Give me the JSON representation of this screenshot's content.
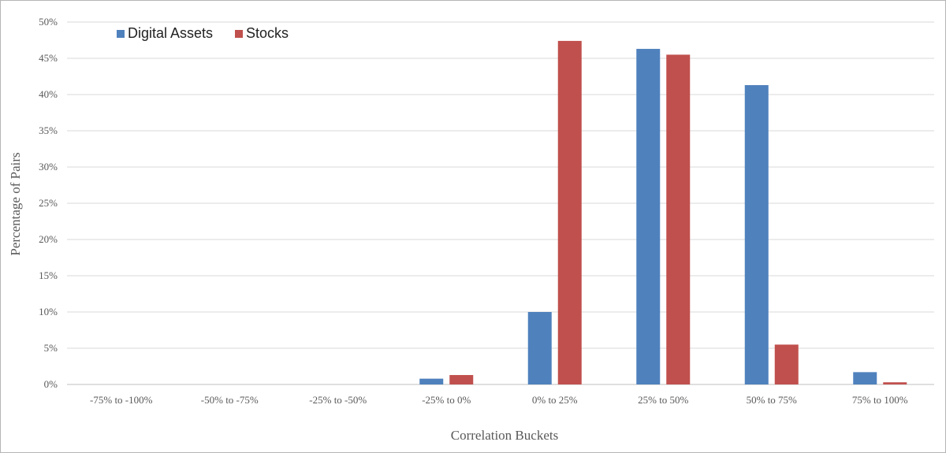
{
  "chart_data": {
    "type": "bar",
    "title": "",
    "xlabel": "Correlation Buckets",
    "ylabel": "Percentage of Pairs",
    "ylim": [
      0,
      50
    ],
    "y_tick_step": 5,
    "y_tick_labels": [
      "0%",
      "5%",
      "10%",
      "15%",
      "20%",
      "25%",
      "30%",
      "35%",
      "40%",
      "45%",
      "50%"
    ],
    "grid": true,
    "legend_position": "top-left",
    "categories": [
      "-75% to -100%",
      "-50% to -75%",
      "-25% to -50%",
      "-25% to 0%",
      "0% to 25%",
      "25% to 50%",
      "50% to 75%",
      "75% to 100%"
    ],
    "series": [
      {
        "name": "Digital Assets",
        "color": "#4f81bd",
        "values": [
          0,
          0,
          0,
          0.8,
          10.0,
          46.3,
          41.3,
          1.7
        ]
      },
      {
        "name": "Stocks",
        "color": "#c0504d",
        "values": [
          0,
          0,
          0,
          1.3,
          47.4,
          45.5,
          5.5,
          0.3
        ]
      }
    ]
  }
}
